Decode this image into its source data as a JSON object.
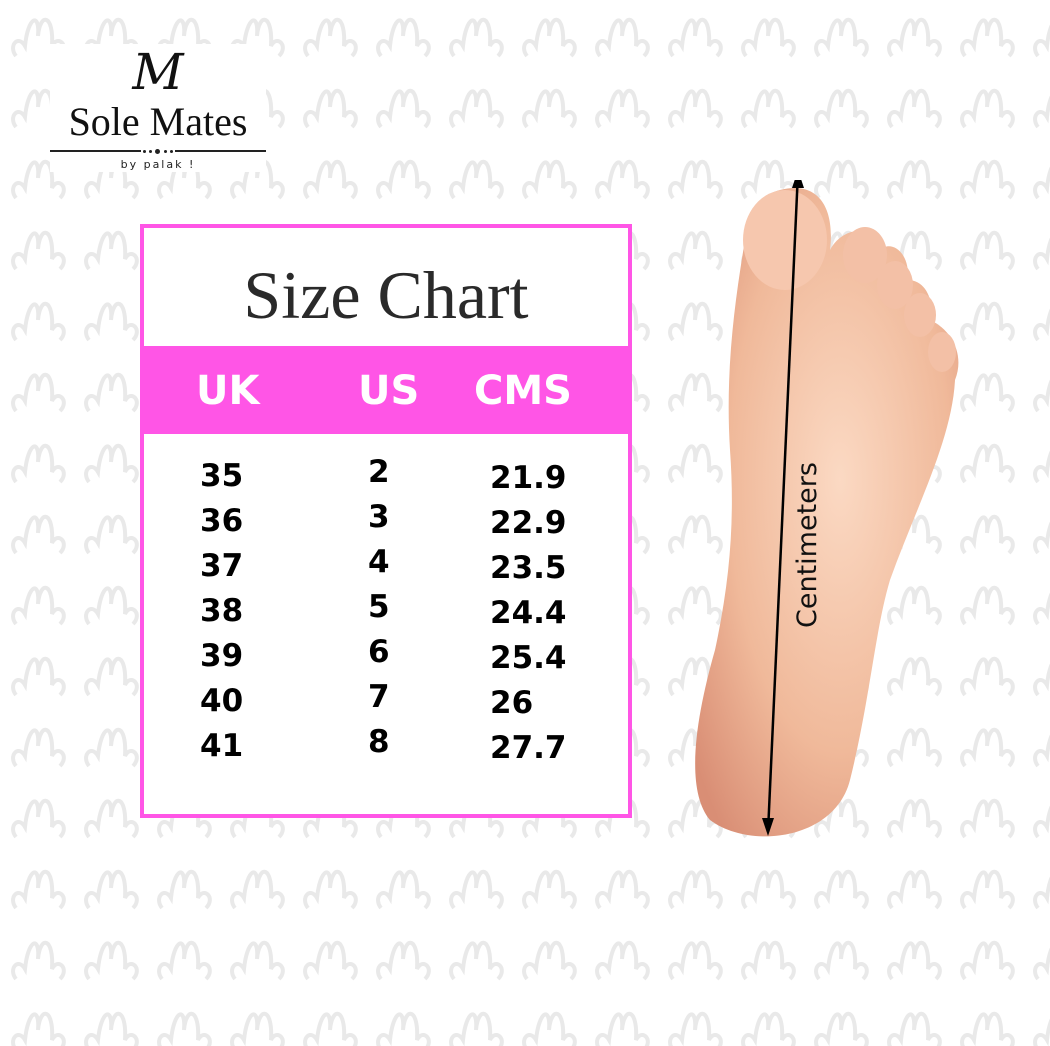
{
  "brand": {
    "monogram": "M",
    "name": "Sole Mates",
    "tagline": "by palak !"
  },
  "colors": {
    "accent": "#ff55e6",
    "pattern": "#e9e9e9",
    "skin": "#f0b99a"
  },
  "chart": {
    "title": "Size Chart",
    "headers": [
      "UK",
      "US",
      "CMS"
    ],
    "uk": [
      "35",
      "36",
      "37",
      "38",
      "39",
      "40",
      "41"
    ],
    "us": [
      "2",
      "3",
      "4",
      "5",
      "6",
      "7",
      "8"
    ],
    "cms": [
      "21.9",
      "22.9",
      "23.5",
      "24.4",
      "25.4",
      "26",
      "27.7"
    ]
  },
  "foot": {
    "measure_label": "Centimeters"
  }
}
